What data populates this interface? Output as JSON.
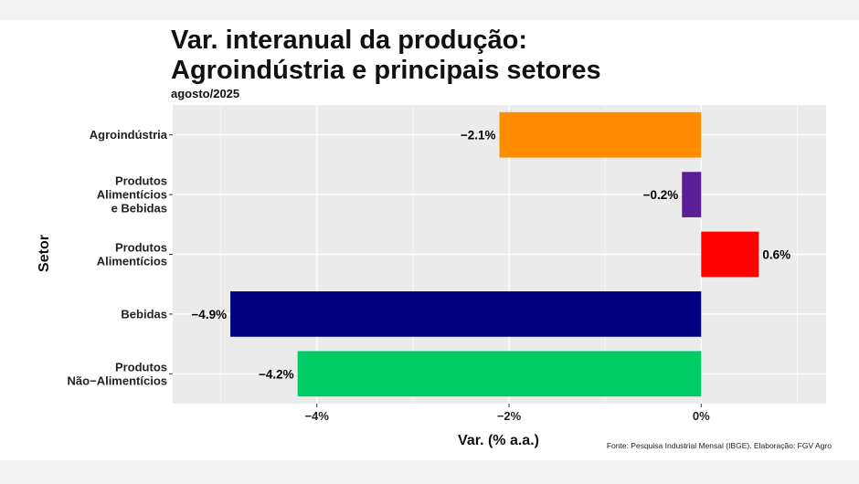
{
  "chart_data": {
    "type": "bar",
    "orientation": "horizontal",
    "title_line1": "Var. interanual da produção:",
    "title_line2": "Agroindústria e principais setores",
    "subtitle": "agosto/2025",
    "xlabel": "Var. (% a.a.)",
    "ylabel": "Setor",
    "caption": "Fonte: Pesquisa Industrial Mensal (IBGE). Elaboração: FGV Agro",
    "xlim": [
      -5.5,
      1.3
    ],
    "xticks": [
      -4,
      -2,
      0
    ],
    "xtick_labels": [
      "−4%",
      "−2%",
      "0%"
    ],
    "categories": [
      {
        "label_lines": [
          "Agroindústria"
        ],
        "value": -2.1,
        "value_label": "−2.1%",
        "color": "#FF8C00"
      },
      {
        "label_lines": [
          "Produtos",
          "Alimentícios",
          "e Bebidas"
        ],
        "value": -0.2,
        "value_label": "−0.2%",
        "color": "#5B1E96"
      },
      {
        "label_lines": [
          "Produtos",
          "Alimentícios"
        ],
        "value": 0.6,
        "value_label": "0.6%",
        "color": "#FF0000"
      },
      {
        "label_lines": [
          "Bebidas"
        ],
        "value": -4.9,
        "value_label": "−4.9%",
        "color": "#000080"
      },
      {
        "label_lines": [
          "Produtos",
          "Não−Alimentícios"
        ],
        "value": -4.2,
        "value_label": "−4.2%",
        "color": "#00CC66"
      }
    ]
  }
}
